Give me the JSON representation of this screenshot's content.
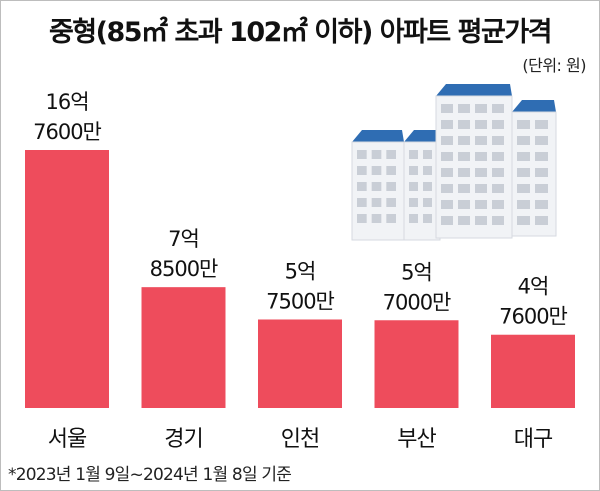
{
  "title": "중형(85㎡ 초과 102㎡ 이하) 아파트 평균가격",
  "unit_note": "(단위: 원)",
  "footnote": "*2023년 1월 9일~2024년 1월 8일 기준",
  "decoration": {
    "name": "apartment-buildings-illustration",
    "colors": {
      "wall": "#f1f3f6",
      "roof": "#2f6db3",
      "window": "#c9ced6"
    }
  },
  "colors": {
    "bar": "#ee4c5c"
  },
  "chart_data": {
    "type": "bar",
    "categories": [
      "서울",
      "경기",
      "인천",
      "부산",
      "대구"
    ],
    "values": [
      1676000000,
      785000000,
      575000000,
      570000000,
      476000000
    ],
    "value_labels": [
      [
        "16억",
        "7600만"
      ],
      [
        "7억",
        "8500만"
      ],
      [
        "5억",
        "7500만"
      ],
      [
        "5억",
        "7000만"
      ],
      [
        "4억",
        "7600만"
      ]
    ],
    "title": "중형(85㎡ 초과 102㎡ 이하) 아파트 평균가격",
    "xlabel": "",
    "ylabel": "",
    "ylim": [
      0,
      1676000000
    ],
    "grid": false,
    "legend": "none"
  }
}
